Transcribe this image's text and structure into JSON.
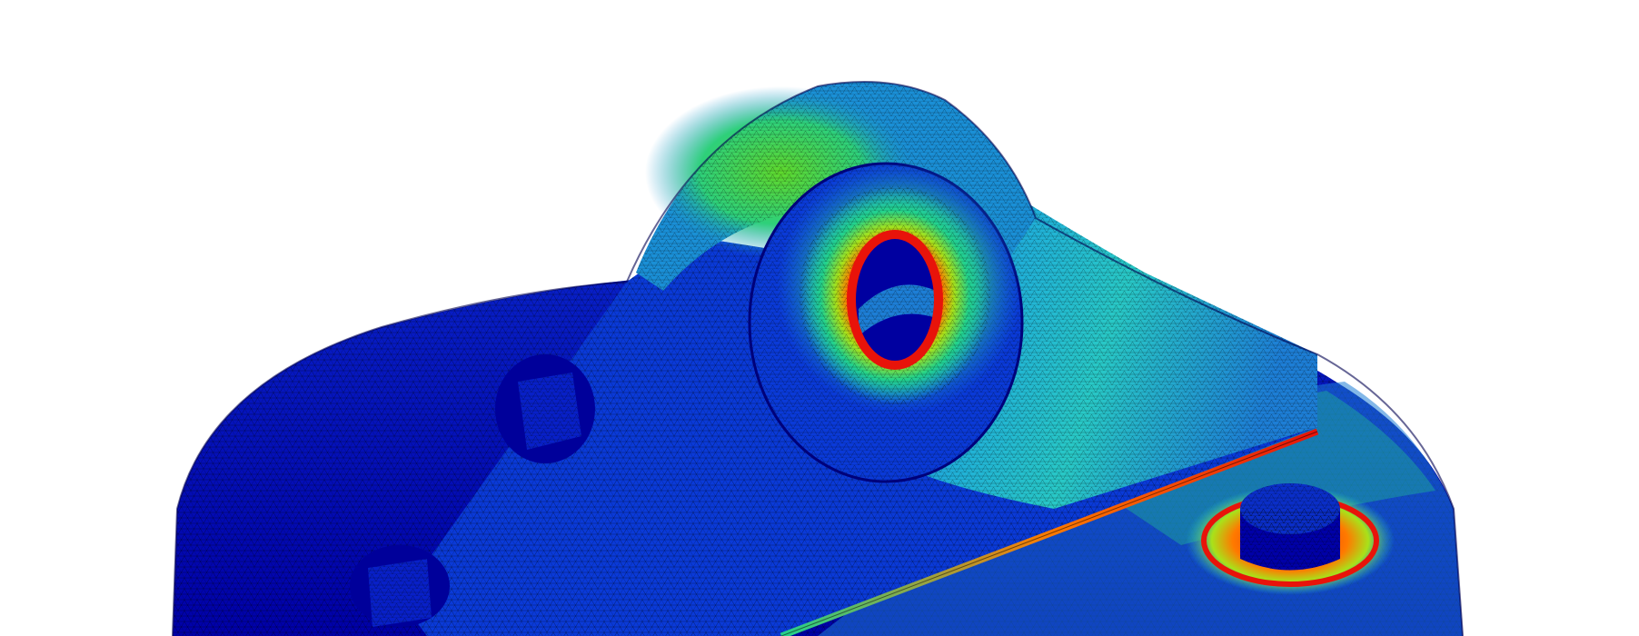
{
  "scene": {
    "subject": "fea-stress-contour",
    "background_color": "#ffffff",
    "mesh_color": "#000000",
    "colormap": [
      "#0000b4",
      "#0a3ad8",
      "#1a8fd6",
      "#1fc9d2",
      "#22d28c",
      "#3fd23a",
      "#a8e21a",
      "#ffe000",
      "#ff7a00",
      "#e8130a"
    ]
  }
}
